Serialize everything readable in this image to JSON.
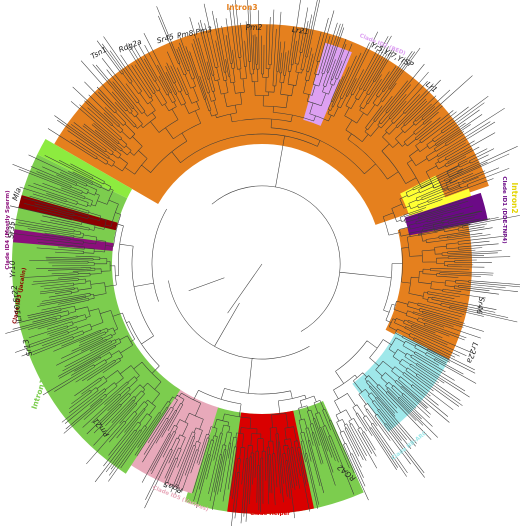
{
  "colors": {
    "intron3": "#E5801E",
    "intron2": "#FFFF33",
    "intron1": "#7CCD4E",
    "mla": "#8DEB3F",
    "id2": "#DDA0F2",
    "id1": "#6B0A86",
    "id4": "#8B0F7B",
    "id3": "#8B0000",
    "integratedNB": "#9FE8EA",
    "helper": "#D90000",
    "id5": "#E8A9BA",
    "branch": "#3a3a3a"
  },
  "clades": {
    "intron3": "Intron3",
    "intron2": "Intron2",
    "intron1": "Intron1",
    "id2": "Clade ID2 (BED)",
    "id1": "Clade ID1 (DDE-TNP4)",
    "id4": "Clade ID4 (Mostly Sperm)",
    "id3": "Clade ID3 (Jacalin)",
    "integratedNB": "Clade NB-ARC",
    "helper": "Clade Helper",
    "id5": "Clade ID5 (Various)"
  },
  "genes": {
    "tsn1": "Tsn1",
    "rdg2a": "Rdg2a",
    "sr45": "Sr45",
    "pm8pm3": "Pm8,Pm3",
    "pm2": "Pm2",
    "lr21": "Lr21",
    "yr5": "Yr5,Yr7,YrSP",
    "lr1": "Lr1",
    "mla": "Mla",
    "sr35": "Sr35",
    "yr10": "Yr10",
    "lr10sr22": "Lr10,Sr22",
    "sr13": "Sr13",
    "pm21": "Pm21",
    "rga5": "Rga5",
    "rga2": "RGA2",
    "sr46": "Sr46",
    "lr22a": "Lr22a"
  }
}
